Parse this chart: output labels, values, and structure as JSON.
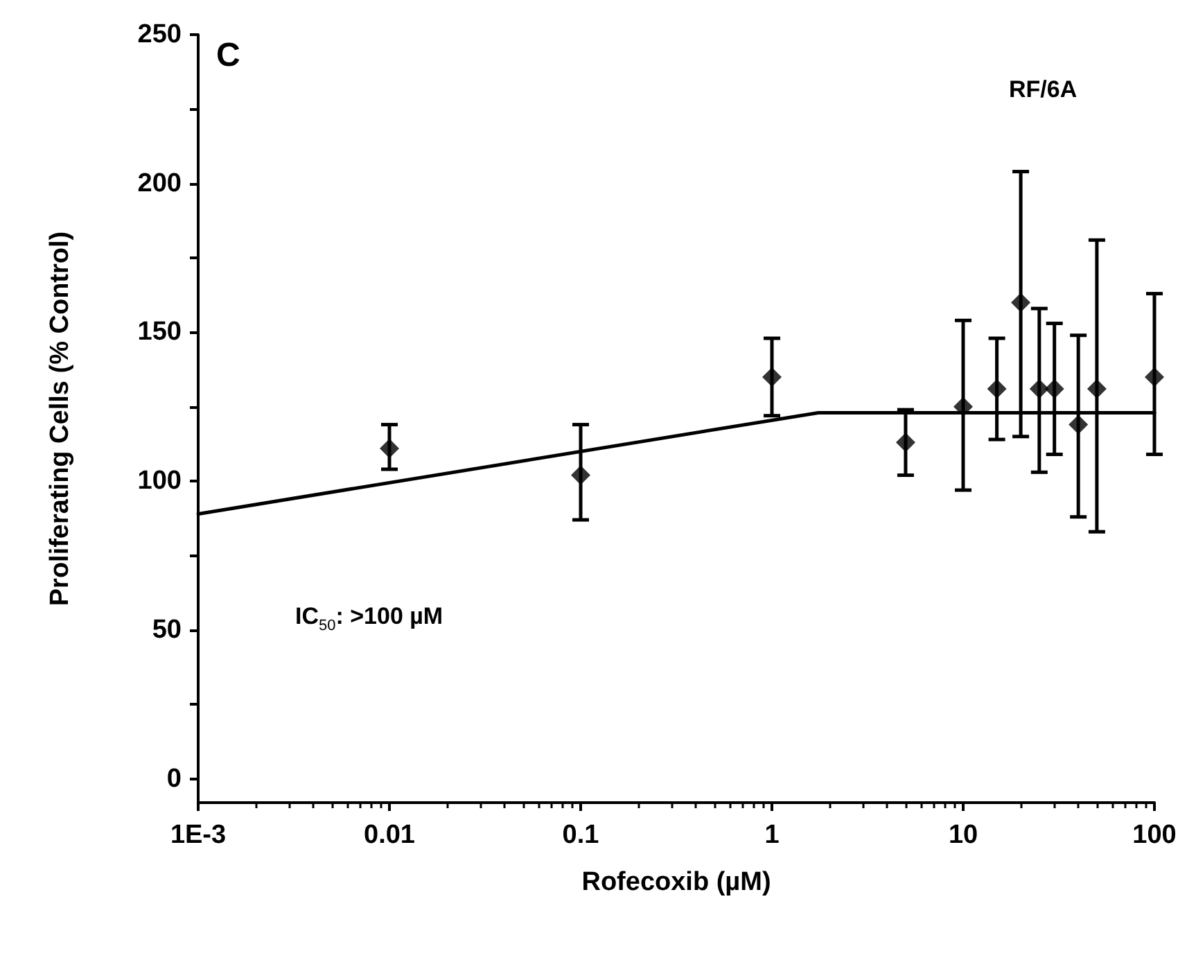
{
  "chart_data": {
    "type": "scatter",
    "xlabel": "Rofecoxib (µM)",
    "ylabel": "Proliferating Cells (% Control)",
    "log": "x",
    "grid": false,
    "xlim": [
      0.001,
      100
    ],
    "xticks": [
      {
        "value": 0.001,
        "label": "1E-3"
      },
      0.01,
      0.1,
      1,
      10,
      100
    ],
    "ylim": [
      -8,
      250
    ],
    "yticks": [
      0,
      {
        "value": 25,
        "label": null
      },
      50,
      {
        "value": 75,
        "label": null
      },
      100,
      {
        "value": 125,
        "label": null
      },
      150,
      {
        "value": 175,
        "label": null
      },
      200,
      {
        "value": 225,
        "label": null
      },
      250
    ],
    "annotations": [
      "C",
      "RF/6A",
      "IC$_{50}$: >100 µM"
    ],
    "series": [
      {
        "color": "#000000",
        "marker": "diamond",
        "x": [
          0.01,
          0.1,
          1,
          5,
          10,
          15,
          20,
          25,
          30,
          40,
          50,
          100
        ],
        "values": [
          111,
          102,
          135,
          113,
          125,
          131,
          160,
          131,
          131,
          119,
          131,
          135
        ],
        "errors": [
          [
            104,
            119
          ],
          [
            87,
            119
          ],
          [
            122,
            148
          ],
          [
            102,
            124
          ],
          [
            97,
            154
          ],
          [
            114,
            148
          ],
          [
            115,
            204
          ],
          [
            103,
            158
          ],
          [
            109,
            153
          ],
          [
            88,
            149
          ],
          [
            83,
            181
          ],
          [
            109,
            163
          ]
        ]
      },
      {
        "type": "line",
        "color": "#000000",
        "marker": "none",
        "line_style": "solid",
        "x": [
          0.001,
          1.75,
          100
        ],
        "values": [
          89,
          123,
          123
        ]
      }
    ]
  }
}
